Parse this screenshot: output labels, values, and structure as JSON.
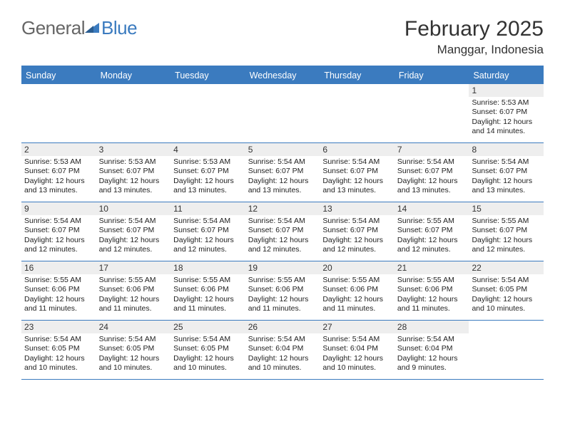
{
  "logo": {
    "general": "General",
    "blue": "Blue"
  },
  "title": "February 2025",
  "location": "Manggar, Indonesia",
  "colors": {
    "accent": "#3b7bbf",
    "header_bg": "#3b7bbf",
    "daynum_bg": "#eeeeee",
    "text": "#222222",
    "logo_gray": "#666666"
  },
  "days_of_week": [
    "Sunday",
    "Monday",
    "Tuesday",
    "Wednesday",
    "Thursday",
    "Friday",
    "Saturday"
  ],
  "weeks": [
    [
      {
        "n": "",
        "sunrise": "",
        "sunset": "",
        "daylight": ""
      },
      {
        "n": "",
        "sunrise": "",
        "sunset": "",
        "daylight": ""
      },
      {
        "n": "",
        "sunrise": "",
        "sunset": "",
        "daylight": ""
      },
      {
        "n": "",
        "sunrise": "",
        "sunset": "",
        "daylight": ""
      },
      {
        "n": "",
        "sunrise": "",
        "sunset": "",
        "daylight": ""
      },
      {
        "n": "",
        "sunrise": "",
        "sunset": "",
        "daylight": ""
      },
      {
        "n": "1",
        "sunrise": "Sunrise: 5:53 AM",
        "sunset": "Sunset: 6:07 PM",
        "daylight": "Daylight: 12 hours and 14 minutes."
      }
    ],
    [
      {
        "n": "2",
        "sunrise": "Sunrise: 5:53 AM",
        "sunset": "Sunset: 6:07 PM",
        "daylight": "Daylight: 12 hours and 13 minutes."
      },
      {
        "n": "3",
        "sunrise": "Sunrise: 5:53 AM",
        "sunset": "Sunset: 6:07 PM",
        "daylight": "Daylight: 12 hours and 13 minutes."
      },
      {
        "n": "4",
        "sunrise": "Sunrise: 5:53 AM",
        "sunset": "Sunset: 6:07 PM",
        "daylight": "Daylight: 12 hours and 13 minutes."
      },
      {
        "n": "5",
        "sunrise": "Sunrise: 5:54 AM",
        "sunset": "Sunset: 6:07 PM",
        "daylight": "Daylight: 12 hours and 13 minutes."
      },
      {
        "n": "6",
        "sunrise": "Sunrise: 5:54 AM",
        "sunset": "Sunset: 6:07 PM",
        "daylight": "Daylight: 12 hours and 13 minutes."
      },
      {
        "n": "7",
        "sunrise": "Sunrise: 5:54 AM",
        "sunset": "Sunset: 6:07 PM",
        "daylight": "Daylight: 12 hours and 13 minutes."
      },
      {
        "n": "8",
        "sunrise": "Sunrise: 5:54 AM",
        "sunset": "Sunset: 6:07 PM",
        "daylight": "Daylight: 12 hours and 13 minutes."
      }
    ],
    [
      {
        "n": "9",
        "sunrise": "Sunrise: 5:54 AM",
        "sunset": "Sunset: 6:07 PM",
        "daylight": "Daylight: 12 hours and 12 minutes."
      },
      {
        "n": "10",
        "sunrise": "Sunrise: 5:54 AM",
        "sunset": "Sunset: 6:07 PM",
        "daylight": "Daylight: 12 hours and 12 minutes."
      },
      {
        "n": "11",
        "sunrise": "Sunrise: 5:54 AM",
        "sunset": "Sunset: 6:07 PM",
        "daylight": "Daylight: 12 hours and 12 minutes."
      },
      {
        "n": "12",
        "sunrise": "Sunrise: 5:54 AM",
        "sunset": "Sunset: 6:07 PM",
        "daylight": "Daylight: 12 hours and 12 minutes."
      },
      {
        "n": "13",
        "sunrise": "Sunrise: 5:54 AM",
        "sunset": "Sunset: 6:07 PM",
        "daylight": "Daylight: 12 hours and 12 minutes."
      },
      {
        "n": "14",
        "sunrise": "Sunrise: 5:55 AM",
        "sunset": "Sunset: 6:07 PM",
        "daylight": "Daylight: 12 hours and 12 minutes."
      },
      {
        "n": "15",
        "sunrise": "Sunrise: 5:55 AM",
        "sunset": "Sunset: 6:07 PM",
        "daylight": "Daylight: 12 hours and 12 minutes."
      }
    ],
    [
      {
        "n": "16",
        "sunrise": "Sunrise: 5:55 AM",
        "sunset": "Sunset: 6:06 PM",
        "daylight": "Daylight: 12 hours and 11 minutes."
      },
      {
        "n": "17",
        "sunrise": "Sunrise: 5:55 AM",
        "sunset": "Sunset: 6:06 PM",
        "daylight": "Daylight: 12 hours and 11 minutes."
      },
      {
        "n": "18",
        "sunrise": "Sunrise: 5:55 AM",
        "sunset": "Sunset: 6:06 PM",
        "daylight": "Daylight: 12 hours and 11 minutes."
      },
      {
        "n": "19",
        "sunrise": "Sunrise: 5:55 AM",
        "sunset": "Sunset: 6:06 PM",
        "daylight": "Daylight: 12 hours and 11 minutes."
      },
      {
        "n": "20",
        "sunrise": "Sunrise: 5:55 AM",
        "sunset": "Sunset: 6:06 PM",
        "daylight": "Daylight: 12 hours and 11 minutes."
      },
      {
        "n": "21",
        "sunrise": "Sunrise: 5:55 AM",
        "sunset": "Sunset: 6:06 PM",
        "daylight": "Daylight: 12 hours and 11 minutes."
      },
      {
        "n": "22",
        "sunrise": "Sunrise: 5:54 AM",
        "sunset": "Sunset: 6:05 PM",
        "daylight": "Daylight: 12 hours and 10 minutes."
      }
    ],
    [
      {
        "n": "23",
        "sunrise": "Sunrise: 5:54 AM",
        "sunset": "Sunset: 6:05 PM",
        "daylight": "Daylight: 12 hours and 10 minutes."
      },
      {
        "n": "24",
        "sunrise": "Sunrise: 5:54 AM",
        "sunset": "Sunset: 6:05 PM",
        "daylight": "Daylight: 12 hours and 10 minutes."
      },
      {
        "n": "25",
        "sunrise": "Sunrise: 5:54 AM",
        "sunset": "Sunset: 6:05 PM",
        "daylight": "Daylight: 12 hours and 10 minutes."
      },
      {
        "n": "26",
        "sunrise": "Sunrise: 5:54 AM",
        "sunset": "Sunset: 6:04 PM",
        "daylight": "Daylight: 12 hours and 10 minutes."
      },
      {
        "n": "27",
        "sunrise": "Sunrise: 5:54 AM",
        "sunset": "Sunset: 6:04 PM",
        "daylight": "Daylight: 12 hours and 10 minutes."
      },
      {
        "n": "28",
        "sunrise": "Sunrise: 5:54 AM",
        "sunset": "Sunset: 6:04 PM",
        "daylight": "Daylight: 12 hours and 9 minutes."
      },
      {
        "n": "",
        "sunrise": "",
        "sunset": "",
        "daylight": ""
      }
    ]
  ]
}
